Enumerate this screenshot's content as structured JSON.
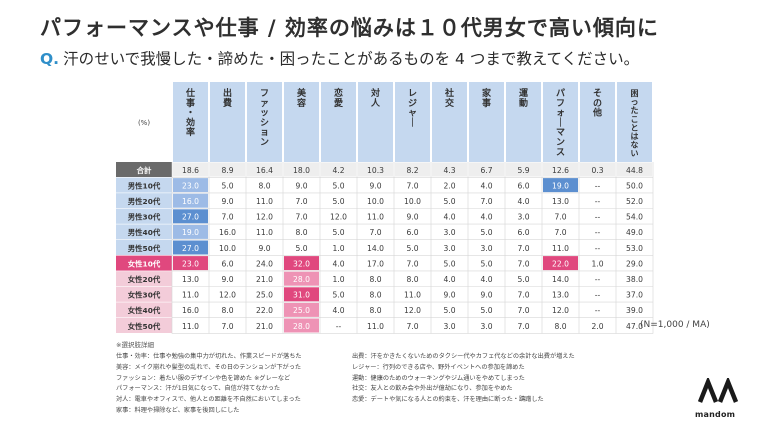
{
  "title": "パフォーマンスや仕事 / 効率の悩みは１０代男女で高い傾向に",
  "question_prefix": "Q.",
  "question_text": "汗のせいで我慢した・諦めた・困ったことがあるものを 4 つまで教えてください。",
  "sample_note": "(N=1,000 / MA)",
  "note_heading": "※選択肢詳細",
  "notes_left": [
    "仕事・効率：仕事や勉強の集中力が切れた、作業スピードが落ちた",
    "美容：メイク崩れや髪型の乱れで、その日のテンションが下がった",
    "ファッション：着たい服のデザインや色を諦めた ※グレーなど",
    "パフォーマンス：汗が1日気になって、自信が持てなかった",
    "対人：電車やオフィスで、他人との距離を不自然においてしまった",
    "家事：料理や掃除など、家事を後回しにした"
  ],
  "notes_right": [
    "出費：汗をかきたくないためのタクシー代やカフェ代などの余計な出費が増えた",
    "レジャー：行列のできる店や、野外イベントへの参加を諦めた",
    "運動：健康のためのウォーキングやジム通いをやめてしまった",
    "社交：友人との飲み会や外出が億劫になり、参加をやめた",
    "恋愛：デートや気になる人との約束を、汗を理由に断った・躊躇した"
  ],
  "brand": "mandom",
  "colors": {
    "header_bg": "#c5d8ef",
    "total_bg": "#6a6a6a",
    "male_label_bg": "#c5d8ef",
    "female_label_bg": "#f3ccd9",
    "female10_label_bg": "#e0487e",
    "male_highlight": "#5c8fd0",
    "male_highlight_light": "#9dbbe6",
    "female_highlight": "#e0487e",
    "female_highlight_light": "#ee93b5",
    "border": "#d6d6d6",
    "title": "#2f2f2f",
    "question_accent": "#2f8fc9"
  },
  "chart_data": {
    "type": "table",
    "corner_label": "(%)",
    "columns": [
      "仕事・効率",
      "出費",
      "ファッション",
      "美容",
      "恋愛",
      "対人",
      "レジャー",
      "社交",
      "家事",
      "運動",
      "パフォーマンス",
      "その他",
      "困ったことはない"
    ],
    "rows": [
      {
        "label": "合計",
        "group": "total",
        "values": [
          "18.6",
          "8.9",
          "16.4",
          "18.0",
          "4.2",
          "10.3",
          "8.2",
          "4.3",
          "6.7",
          "5.9",
          "12.6",
          "0.3",
          "44.8"
        ]
      },
      {
        "label": "男性10代",
        "group": "male",
        "values": [
          "23.0",
          "5.0",
          "8.0",
          "9.0",
          "5.0",
          "9.0",
          "7.0",
          "2.0",
          "4.0",
          "6.0",
          "19.0",
          "--",
          "50.0"
        ]
      },
      {
        "label": "男性20代",
        "group": "male",
        "values": [
          "16.0",
          "9.0",
          "11.0",
          "7.0",
          "5.0",
          "10.0",
          "10.0",
          "5.0",
          "7.0",
          "4.0",
          "13.0",
          "--",
          "52.0"
        ]
      },
      {
        "label": "男性30代",
        "group": "male",
        "values": [
          "27.0",
          "7.0",
          "12.0",
          "7.0",
          "12.0",
          "11.0",
          "9.0",
          "4.0",
          "4.0",
          "3.0",
          "7.0",
          "--",
          "54.0"
        ]
      },
      {
        "label": "男性40代",
        "group": "male",
        "values": [
          "19.0",
          "16.0",
          "11.0",
          "8.0",
          "5.0",
          "7.0",
          "6.0",
          "3.0",
          "5.0",
          "6.0",
          "7.0",
          "--",
          "49.0"
        ]
      },
      {
        "label": "男性50代",
        "group": "male",
        "values": [
          "27.0",
          "10.0",
          "9.0",
          "5.0",
          "1.0",
          "14.0",
          "5.0",
          "3.0",
          "3.0",
          "7.0",
          "11.0",
          "--",
          "53.0"
        ]
      },
      {
        "label": "女性10代",
        "group": "female10",
        "values": [
          "23.0",
          "6.0",
          "24.0",
          "32.0",
          "4.0",
          "17.0",
          "7.0",
          "5.0",
          "5.0",
          "7.0",
          "22.0",
          "1.0",
          "29.0"
        ]
      },
      {
        "label": "女性20代",
        "group": "female",
        "values": [
          "13.0",
          "9.0",
          "21.0",
          "28.0",
          "1.0",
          "8.0",
          "8.0",
          "4.0",
          "4.0",
          "5.0",
          "14.0",
          "--",
          "38.0"
        ]
      },
      {
        "label": "女性30代",
        "group": "female",
        "values": [
          "11.0",
          "12.0",
          "25.0",
          "31.0",
          "5.0",
          "8.0",
          "11.0",
          "9.0",
          "9.0",
          "7.0",
          "13.0",
          "--",
          "37.0"
        ]
      },
      {
        "label": "女性40代",
        "group": "female",
        "values": [
          "16.0",
          "8.0",
          "22.0",
          "25.0",
          "4.0",
          "8.0",
          "12.0",
          "5.0",
          "5.0",
          "7.0",
          "12.0",
          "--",
          "39.0"
        ]
      },
      {
        "label": "女性50代",
        "group": "female",
        "values": [
          "11.0",
          "7.0",
          "21.0",
          "28.0",
          "--",
          "11.0",
          "7.0",
          "3.0",
          "3.0",
          "7.0",
          "8.0",
          "2.0",
          "47.0"
        ]
      }
    ],
    "highlights": [
      {
        "row": 1,
        "col": 0,
        "tone": "male_light"
      },
      {
        "row": 2,
        "col": 0,
        "tone": "male_light"
      },
      {
        "row": 3,
        "col": 0,
        "tone": "male"
      },
      {
        "row": 4,
        "col": 0,
        "tone": "male_light"
      },
      {
        "row": 5,
        "col": 0,
        "tone": "male"
      },
      {
        "row": 1,
        "col": 10,
        "tone": "male"
      },
      {
        "row": 6,
        "col": 0,
        "tone": "female"
      },
      {
        "row": 6,
        "col": 3,
        "tone": "female"
      },
      {
        "row": 6,
        "col": 10,
        "tone": "female"
      },
      {
        "row": 7,
        "col": 3,
        "tone": "female_light"
      },
      {
        "row": 8,
        "col": 3,
        "tone": "female"
      },
      {
        "row": 9,
        "col": 3,
        "tone": "female_light"
      },
      {
        "row": 10,
        "col": 3,
        "tone": "female_light"
      }
    ]
  }
}
